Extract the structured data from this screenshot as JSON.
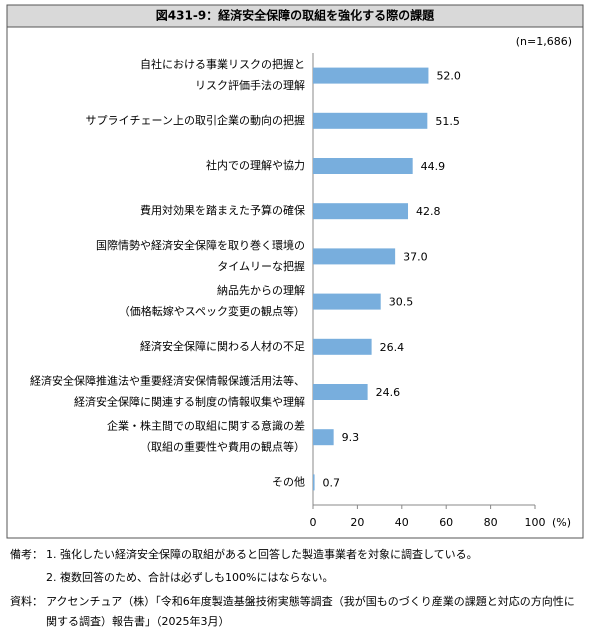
{
  "chart_data": {
    "type": "bar",
    "orientation": "horizontal",
    "title": "図431-9：経済安全保障の取組を強化する際の課題",
    "sample_note": "(n=1,686)",
    "x_unit": "(%)",
    "categories": [
      "自社における事業リスクの把握と\nリスク評価手法の理解",
      "サプライチェーン上の取引企業の動向の把握",
      "社内での理解や協力",
      "費用対効果を踏まえた予算の確保",
      "国際情勢や経済安全保障を取り巻く環境の\nタイムリーな把握",
      "納品先からの理解\n（価格転嫁やスペック変更の観点等）",
      "経済安全保障に関わる人材の不足",
      "経済安全保障推進法や重要経済安保情報保護活用法等、\n経済安全保障に関連する制度の情報収集や理解",
      "企業・株主間での取組に関する意識の差\n（取組の重要性や費用の観点等）",
      "その他"
    ],
    "values": [
      52.0,
      51.5,
      44.9,
      42.8,
      37.0,
      30.5,
      26.4,
      24.6,
      9.3,
      0.7
    ],
    "value_labels": [
      "52.0",
      "51.5",
      "44.9",
      "42.8",
      "37.0",
      "30.5",
      "26.4",
      "24.6",
      "9.3",
      "0.7"
    ],
    "color": "#78aedd",
    "xlim": [
      0,
      100
    ],
    "xticks": [
      0,
      20,
      40,
      60,
      80,
      100
    ],
    "notes_label": "備考：",
    "notes": [
      "1. 強化したい経済安全保障の取組があると回答した製造事業者を対象に調査している。",
      "2. 複数回答のため、合計は必ずしも100%にはならない。"
    ],
    "source_label": "資料：",
    "source": "アクセンチュア（株）「令和6年度製造基盤技術実態等調査（我が国ものづくり産業の課題と対応の方向性に関する調査）報告書」（2025年3月）"
  }
}
